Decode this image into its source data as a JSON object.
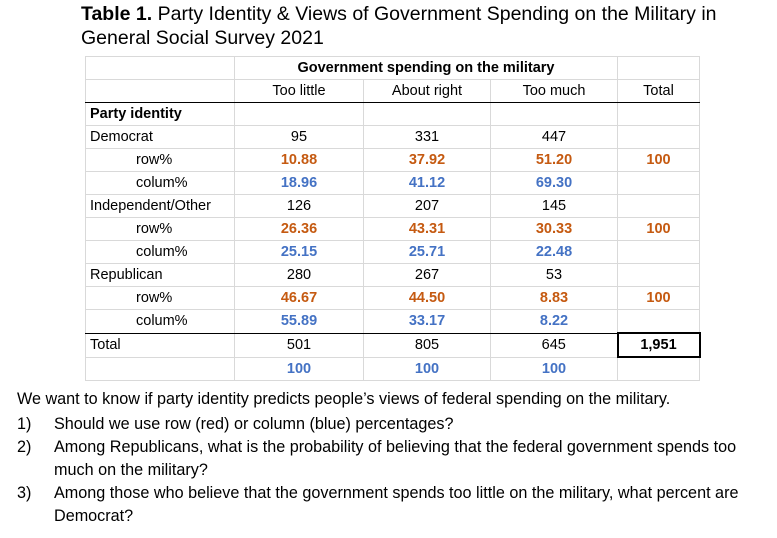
{
  "title": {
    "label": "Table 1.",
    "text": "Party Identity & Views of Government Spending on the Military in General Social Survey 2021"
  },
  "table": {
    "group_header": "Government spending on the military",
    "columns": [
      "Too little",
      "About right",
      "Too much"
    ],
    "total_header": "Total",
    "section_label": "Party identity",
    "row_label": "row%",
    "col_label": "colum%",
    "groups": [
      {
        "name": "Democrat",
        "counts": [
          "95",
          "331",
          "447"
        ],
        "row_pct": [
          "10.88",
          "37.92",
          "51.20"
        ],
        "row_total": "100",
        "col_pct": [
          "18.96",
          "41.12",
          "69.30"
        ]
      },
      {
        "name": "Independent/Other",
        "counts": [
          "126",
          "207",
          "145"
        ],
        "row_pct": [
          "26.36",
          "43.31",
          "30.33"
        ],
        "row_total": "100",
        "col_pct": [
          "25.15",
          "25.71",
          "22.48"
        ]
      },
      {
        "name": "Republican",
        "counts": [
          "280",
          "267",
          "53"
        ],
        "row_pct": [
          "46.67",
          "44.50",
          "8.83"
        ],
        "row_total": "100",
        "col_pct": [
          "55.89",
          "33.17",
          "8.22"
        ]
      }
    ],
    "total_label": "Total",
    "totals": [
      "501",
      "805",
      "645"
    ],
    "grand_total": "1,951",
    "col_totals_pct": [
      "100",
      "100",
      "100"
    ]
  },
  "questions": {
    "intro": "We want to know if party identity predicts people’s views of federal spending on the military.",
    "items": [
      {
        "num": "1)",
        "text": "Should we use row (red) or column (blue) percentages?"
      },
      {
        "num": "2)",
        "text": "Among Republicans, what is the probability of believing that the federal government spends too much on the military?"
      },
      {
        "num": "3)",
        "text": "Among those who believe that the government spends too little on the military, what percent are Democrat?"
      }
    ]
  },
  "colors": {
    "row_pct": "#c55a11",
    "col_pct": "#4472c4"
  }
}
